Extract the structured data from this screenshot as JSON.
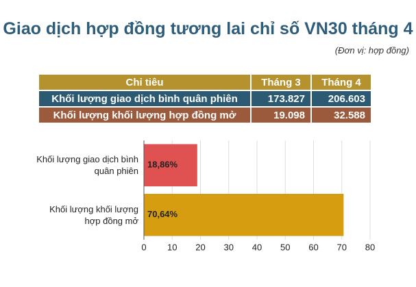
{
  "title": "Giao dịch hợp đồng tương lai chỉ số VN30 tháng 4",
  "unit": "(Đơn vị: hợp đồng)",
  "table": {
    "header": [
      "Chỉ tiêu",
      "Tháng 3",
      "Tháng 4"
    ],
    "rows": [
      [
        "Khối lượng giao dịch bình quân phiên",
        "173.827",
        "206.603"
      ],
      [
        "Khối lượng khối lượng hợp đồng mở",
        "19.098",
        "32.588"
      ]
    ]
  },
  "chart_data": {
    "type": "hbar",
    "categories": [
      "Khối lượng giao dịch bình quân phiên",
      "Khối lượng khối lượng hợp đồng mở"
    ],
    "values": [
      18.86,
      70.64
    ],
    "value_labels": [
      "18,86%",
      "70,64%"
    ],
    "colors": [
      "#e05252",
      "#d69d10"
    ],
    "xlim": [
      0,
      80
    ],
    "xticks": [
      0,
      10,
      20,
      30,
      40,
      50,
      60,
      70,
      80
    ],
    "grid": true
  }
}
